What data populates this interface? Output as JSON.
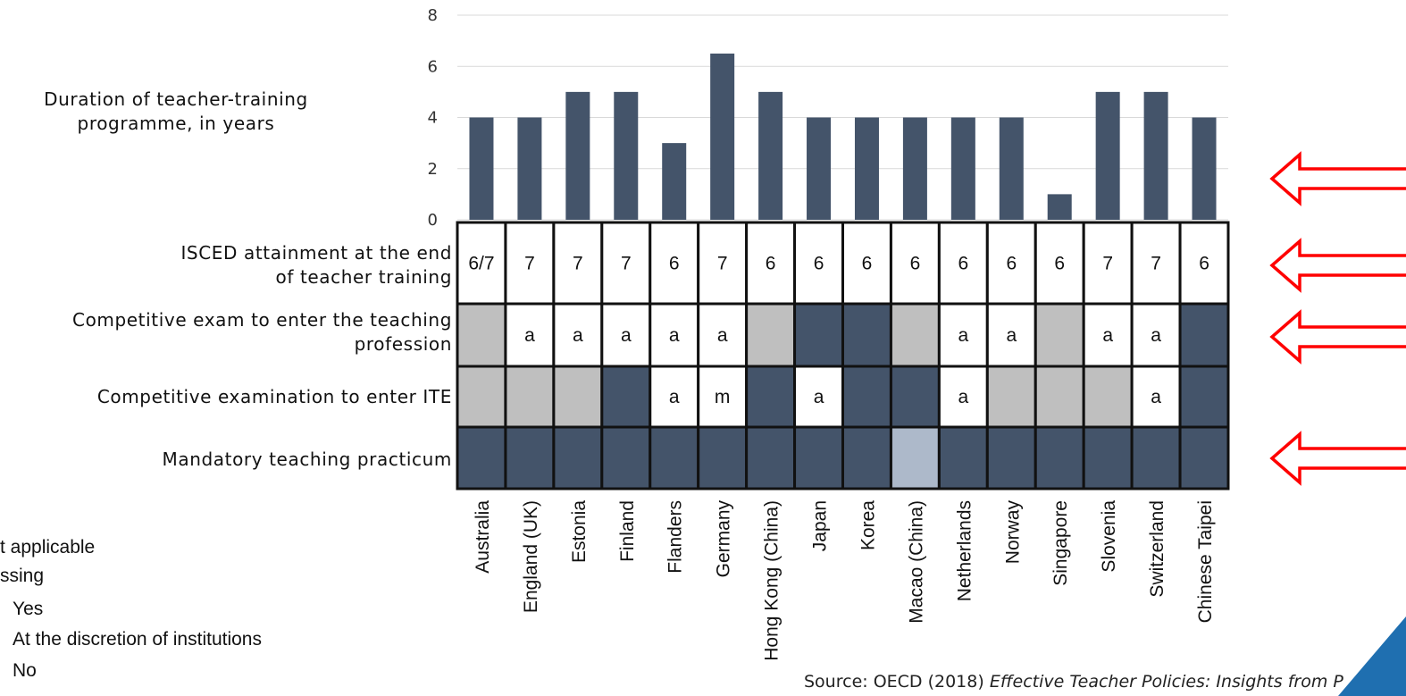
{
  "chart_data": {
    "type": "bar",
    "categories": [
      "Australia",
      "England (UK)",
      "Estonia",
      "Finland",
      "Flanders",
      "Germany",
      "Hong Kong (China)",
      "Japan",
      "Korea",
      "Macao (China)",
      "Netherlands",
      "Norway",
      "Singapore",
      "Slovenia",
      "Switzerland",
      "Chinese Taipei"
    ],
    "values": [
      4,
      4,
      5,
      5,
      3,
      6.5,
      5,
      4,
      4,
      4,
      4,
      4,
      1,
      5,
      5,
      4
    ],
    "ylabel": "Duration of teacher-training programme, in years",
    "ylim": [
      0,
      8
    ],
    "yticks": [
      0,
      2,
      4,
      6,
      8
    ],
    "grid": true,
    "bar_color": "#44546a",
    "table_rows": [
      {
        "label": "ISCED attainment at the end of teacher training",
        "cells": [
          {
            "status": "text",
            "text": "6/7"
          },
          {
            "status": "text",
            "text": "7"
          },
          {
            "status": "text",
            "text": "7"
          },
          {
            "status": "text",
            "text": "7"
          },
          {
            "status": "text",
            "text": "6"
          },
          {
            "status": "text",
            "text": "7"
          },
          {
            "status": "text",
            "text": "6"
          },
          {
            "status": "text",
            "text": "6"
          },
          {
            "status": "text",
            "text": "6"
          },
          {
            "status": "text",
            "text": "6"
          },
          {
            "status": "text",
            "text": "6"
          },
          {
            "status": "text",
            "text": "6"
          },
          {
            "status": "text",
            "text": "6"
          },
          {
            "status": "text",
            "text": "7"
          },
          {
            "status": "text",
            "text": "7"
          },
          {
            "status": "text",
            "text": "6"
          }
        ]
      },
      {
        "label": "Competitive exam to enter the teaching profession",
        "cells": [
          {
            "status": "discretion"
          },
          {
            "status": "text",
            "text": "a"
          },
          {
            "status": "text",
            "text": "a"
          },
          {
            "status": "text",
            "text": "a"
          },
          {
            "status": "text",
            "text": "a"
          },
          {
            "status": "text",
            "text": "a"
          },
          {
            "status": "discretion"
          },
          {
            "status": "yes"
          },
          {
            "status": "yes"
          },
          {
            "status": "discretion"
          },
          {
            "status": "text",
            "text": "a"
          },
          {
            "status": "text",
            "text": "a"
          },
          {
            "status": "discretion"
          },
          {
            "status": "text",
            "text": "a"
          },
          {
            "status": "text",
            "text": "a"
          },
          {
            "status": "yes"
          }
        ]
      },
      {
        "label": "Competitive examination to enter ITE",
        "cells": [
          {
            "status": "discretion"
          },
          {
            "status": "discretion"
          },
          {
            "status": "discretion"
          },
          {
            "status": "yes"
          },
          {
            "status": "text",
            "text": "a"
          },
          {
            "status": "text",
            "text": "m"
          },
          {
            "status": "yes"
          },
          {
            "status": "text",
            "text": "a"
          },
          {
            "status": "yes"
          },
          {
            "status": "yes"
          },
          {
            "status": "text",
            "text": "a"
          },
          {
            "status": "discretion"
          },
          {
            "status": "discretion"
          },
          {
            "status": "discretion"
          },
          {
            "status": "text",
            "text": "a"
          },
          {
            "status": "yes"
          }
        ]
      },
      {
        "label": "Mandatory teaching practicum",
        "cells": [
          {
            "status": "yes"
          },
          {
            "status": "yes"
          },
          {
            "status": "yes"
          },
          {
            "status": "yes"
          },
          {
            "status": "yes"
          },
          {
            "status": "yes"
          },
          {
            "status": "yes"
          },
          {
            "status": "yes"
          },
          {
            "status": "yes"
          },
          {
            "status": "light"
          },
          {
            "status": "yes"
          },
          {
            "status": "yes"
          },
          {
            "status": "yes"
          },
          {
            "status": "yes"
          },
          {
            "status": "yes"
          },
          {
            "status": "yes"
          }
        ]
      }
    ],
    "status_colors": {
      "yes": "#44546a",
      "discretion": "#bfbfbf",
      "light": "#adb9ca",
      "text": "#ffffff"
    },
    "legend": [
      {
        "label": "t applicable"
      },
      {
        "label": "ssing"
      },
      {
        "label": "Yes"
      },
      {
        "label": "At the discretion of institutions"
      },
      {
        "label": "No"
      }
    ],
    "arrow_color": "#ff0000"
  },
  "source": {
    "prefix": "Source: OECD (2018) ",
    "title": "Effective Teacher Policies: Insights from P"
  },
  "bg_triangle_color": "#1f6fb0"
}
